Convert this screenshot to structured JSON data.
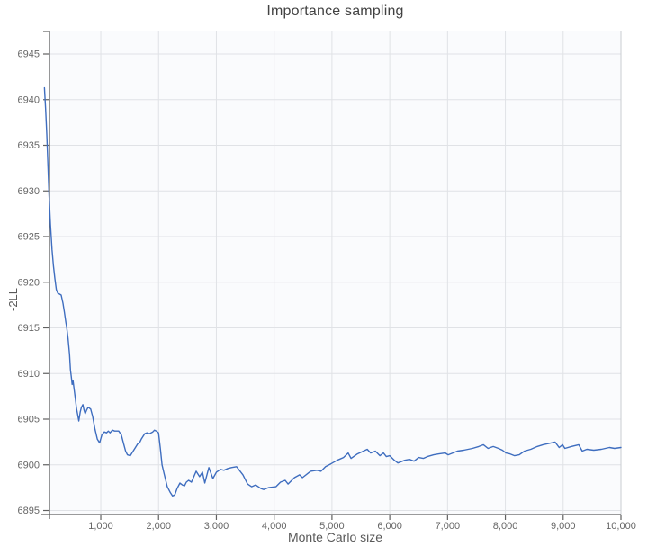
{
  "colors": {
    "line": "#3e6dbf",
    "grid": "#e0e2e6",
    "axis": "#616161",
    "tick_label": "#666666",
    "title": "#424242",
    "axis_title": "#595959",
    "plot_background": "#fafbfd",
    "right_border": "#c9ccd1",
    "page_background": "#ffffff"
  },
  "chart_data": {
    "type": "line",
    "title": "Importance sampling",
    "xlabel": "Monte Carlo size",
    "ylabel": "-2LL",
    "xlim": [
      0,
      10000
    ],
    "ylim": [
      6894.6,
      6947.4
    ],
    "x_ticks": [
      1000,
      2000,
      3000,
      4000,
      5000,
      6000,
      7000,
      8000,
      9000,
      10000
    ],
    "x_tick_labels": [
      "1,000",
      "2,000",
      "3,000",
      "4,000",
      "5,000",
      "6,000",
      "7,000",
      "8,000",
      "9,000",
      "10,000"
    ],
    "y_ticks": [
      6895,
      6900,
      6905,
      6910,
      6915,
      6920,
      6925,
      6930,
      6935,
      6940,
      6945
    ],
    "grid": true,
    "legend_position": "none",
    "series": [
      {
        "name": "-2LL",
        "color": "#3e6dbf",
        "points": [
          [
            25,
            6941.3
          ],
          [
            45,
            6939.0
          ],
          [
            65,
            6936.2
          ],
          [
            85,
            6932.8
          ],
          [
            105,
            6929.6
          ],
          [
            130,
            6926.3
          ],
          [
            155,
            6923.6
          ],
          [
            180,
            6921.8
          ],
          [
            205,
            6920.4
          ],
          [
            230,
            6919.2
          ],
          [
            255,
            6918.8
          ],
          [
            285,
            6918.7
          ],
          [
            315,
            6918.6
          ],
          [
            345,
            6917.7
          ],
          [
            370,
            6916.7
          ],
          [
            395,
            6915.6
          ],
          [
            410,
            6915.1
          ],
          [
            435,
            6913.8
          ],
          [
            460,
            6912.1
          ],
          [
            475,
            6910.4
          ],
          [
            490,
            6909.6
          ],
          [
            505,
            6908.8
          ],
          [
            520,
            6909.2
          ],
          [
            540,
            6908.2
          ],
          [
            560,
            6907.2
          ],
          [
            580,
            6906.2
          ],
          [
            605,
            6905.3
          ],
          [
            620,
            6904.8
          ],
          [
            645,
            6905.8
          ],
          [
            665,
            6906.3
          ],
          [
            690,
            6906.6
          ],
          [
            710,
            6906.0
          ],
          [
            730,
            6905.6
          ],
          [
            755,
            6906.0
          ],
          [
            780,
            6906.3
          ],
          [
            805,
            6906.2
          ],
          [
            825,
            6906.1
          ],
          [
            860,
            6905.3
          ],
          [
            900,
            6903.9
          ],
          [
            940,
            6902.8
          ],
          [
            980,
            6902.4
          ],
          [
            1020,
            6903.3
          ],
          [
            1060,
            6903.6
          ],
          [
            1100,
            6903.5
          ],
          [
            1130,
            6903.7
          ],
          [
            1160,
            6903.5
          ],
          [
            1200,
            6903.8
          ],
          [
            1240,
            6903.7
          ],
          [
            1280,
            6903.7
          ],
          [
            1310,
            6903.7
          ],
          [
            1355,
            6903.3
          ],
          [
            1400,
            6902.2
          ],
          [
            1430,
            6901.5
          ],
          [
            1460,
            6901.1
          ],
          [
            1510,
            6901.0
          ],
          [
            1560,
            6901.5
          ],
          [
            1590,
            6901.8
          ],
          [
            1640,
            6902.3
          ],
          [
            1670,
            6902.4
          ],
          [
            1700,
            6902.8
          ],
          [
            1730,
            6903.1
          ],
          [
            1760,
            6903.4
          ],
          [
            1800,
            6903.5
          ],
          [
            1840,
            6903.4
          ],
          [
            1870,
            6903.5
          ],
          [
            1900,
            6903.6
          ],
          [
            1930,
            6903.8
          ],
          [
            1960,
            6903.7
          ],
          [
            2000,
            6903.5
          ],
          [
            2030,
            6901.8
          ],
          [
            2060,
            6900.0
          ],
          [
            2100,
            6898.9
          ],
          [
            2150,
            6897.6
          ],
          [
            2200,
            6897.0
          ],
          [
            2240,
            6896.6
          ],
          [
            2280,
            6896.7
          ],
          [
            2320,
            6897.4
          ],
          [
            2370,
            6898.0
          ],
          [
            2410,
            6897.8
          ],
          [
            2450,
            6897.7
          ],
          [
            2480,
            6898.1
          ],
          [
            2520,
            6898.3
          ],
          [
            2570,
            6898.1
          ],
          [
            2650,
            6899.3
          ],
          [
            2710,
            6898.7
          ],
          [
            2760,
            6899.2
          ],
          [
            2800,
            6898.0
          ],
          [
            2870,
            6899.7
          ],
          [
            2940,
            6898.5
          ],
          [
            3000,
            6899.2
          ],
          [
            3070,
            6899.5
          ],
          [
            3130,
            6899.4
          ],
          [
            3200,
            6899.6
          ],
          [
            3260,
            6899.7
          ],
          [
            3350,
            6899.8
          ],
          [
            3460,
            6898.9
          ],
          [
            3540,
            6897.9
          ],
          [
            3610,
            6897.6
          ],
          [
            3680,
            6897.8
          ],
          [
            3770,
            6897.4
          ],
          [
            3820,
            6897.3
          ],
          [
            3900,
            6897.5
          ],
          [
            4030,
            6897.6
          ],
          [
            4110,
            6898.1
          ],
          [
            4190,
            6898.3
          ],
          [
            4240,
            6897.9
          ],
          [
            4350,
            6898.6
          ],
          [
            4440,
            6898.9
          ],
          [
            4490,
            6898.6
          ],
          [
            4630,
            6899.3
          ],
          [
            4740,
            6899.4
          ],
          [
            4810,
            6899.3
          ],
          [
            4890,
            6899.8
          ],
          [
            4980,
            6900.1
          ],
          [
            5090,
            6900.5
          ],
          [
            5200,
            6900.8
          ],
          [
            5280,
            6901.3
          ],
          [
            5330,
            6900.7
          ],
          [
            5440,
            6901.2
          ],
          [
            5510,
            6901.4
          ],
          [
            5610,
            6901.7
          ],
          [
            5670,
            6901.3
          ],
          [
            5750,
            6901.5
          ],
          [
            5830,
            6901.0
          ],
          [
            5890,
            6901.3
          ],
          [
            5940,
            6900.9
          ],
          [
            6000,
            6901.0
          ],
          [
            6080,
            6900.5
          ],
          [
            6140,
            6900.2
          ],
          [
            6180,
            6900.3
          ],
          [
            6260,
            6900.5
          ],
          [
            6340,
            6900.6
          ],
          [
            6420,
            6900.4
          ],
          [
            6500,
            6900.8
          ],
          [
            6580,
            6900.7
          ],
          [
            6650,
            6900.9
          ],
          [
            6760,
            6901.1
          ],
          [
            6850,
            6901.2
          ],
          [
            6960,
            6901.3
          ],
          [
            7010,
            6901.1
          ],
          [
            7090,
            6901.3
          ],
          [
            7170,
            6901.5
          ],
          [
            7280,
            6901.6
          ],
          [
            7430,
            6901.8
          ],
          [
            7540,
            6902.0
          ],
          [
            7620,
            6902.2
          ],
          [
            7700,
            6901.8
          ],
          [
            7790,
            6902.0
          ],
          [
            7880,
            6901.8
          ],
          [
            7950,
            6901.6
          ],
          [
            8010,
            6901.3
          ],
          [
            8080,
            6901.2
          ],
          [
            8160,
            6901.0
          ],
          [
            8240,
            6901.1
          ],
          [
            8330,
            6901.5
          ],
          [
            8440,
            6901.7
          ],
          [
            8550,
            6902.0
          ],
          [
            8650,
            6902.2
          ],
          [
            8790,
            6902.4
          ],
          [
            8860,
            6902.5
          ],
          [
            8930,
            6901.9
          ],
          [
            8990,
            6902.2
          ],
          [
            9030,
            6901.8
          ],
          [
            9140,
            6902.0
          ],
          [
            9270,
            6902.2
          ],
          [
            9330,
            6901.5
          ],
          [
            9410,
            6901.7
          ],
          [
            9530,
            6901.6
          ],
          [
            9660,
            6901.7
          ],
          [
            9800,
            6901.9
          ],
          [
            9890,
            6901.8
          ],
          [
            10000,
            6901.9
          ]
        ]
      }
    ]
  }
}
